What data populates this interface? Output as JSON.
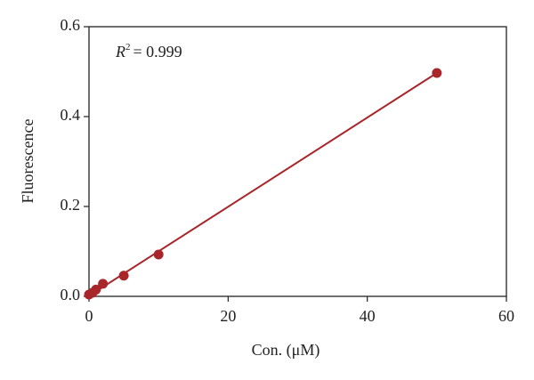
{
  "chart_data": {
    "type": "scatter",
    "x_label": "Con. (μM)",
    "y_label": "Fluorescence",
    "annotation": {
      "symbol": "R",
      "superscript": "2",
      "text": "= 0.999"
    },
    "series": [
      {
        "x": [
          0,
          0.5,
          1,
          2,
          5,
          10,
          50
        ],
        "values": [
          0.004,
          0.008,
          0.015,
          0.028,
          0.046,
          0.093,
          0.497
        ],
        "color": "#a8262a"
      }
    ],
    "fit": {
      "x": [
        0,
        50
      ],
      "values": [
        0.001,
        0.497
      ],
      "color": "#a8262a"
    },
    "xlim": [
      0,
      60
    ],
    "ylim": [
      0,
      0.6
    ],
    "xticks": [
      0,
      20,
      40,
      60
    ],
    "yticks": [
      {
        "value": 0,
        "label": "0.0"
      },
      0.2,
      0.4,
      0.6
    ]
  }
}
